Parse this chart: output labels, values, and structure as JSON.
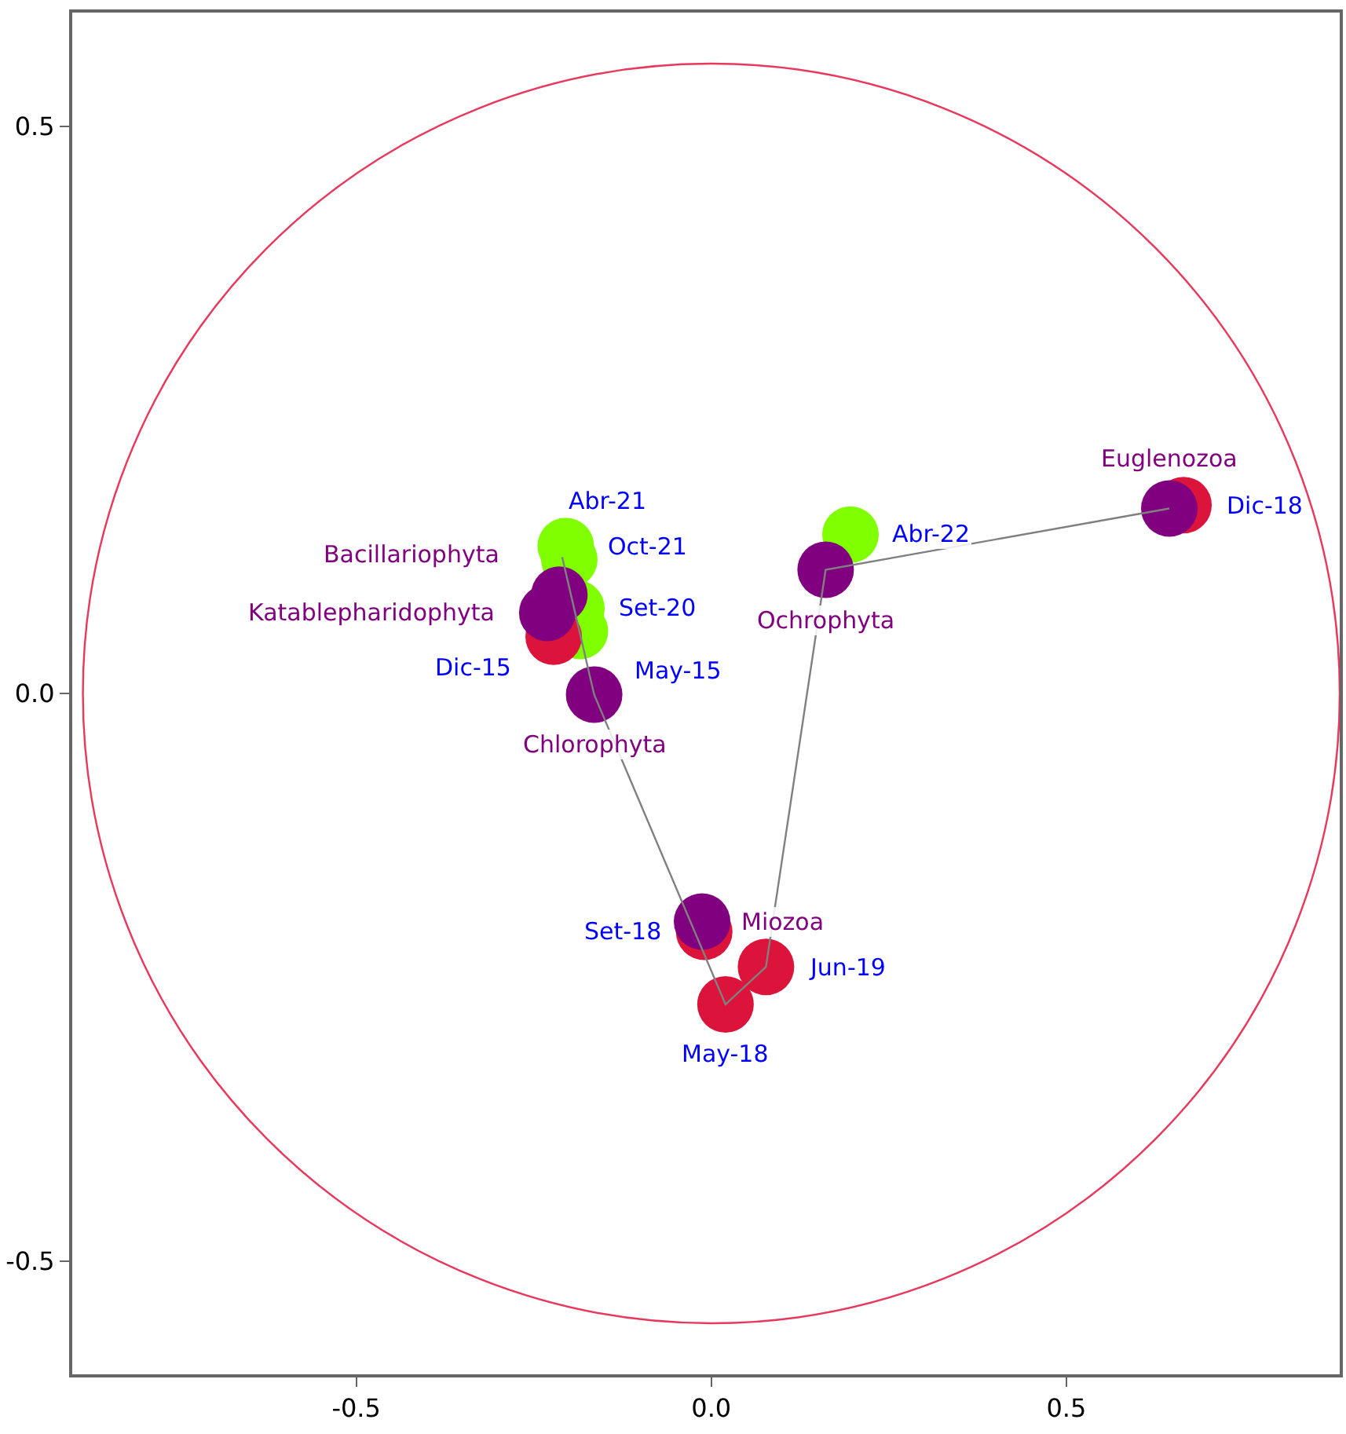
{
  "chart_data": {
    "type": "scatter",
    "xlim": [
      -0.9,
      0.885
    ],
    "ylim": [
      -0.6,
      0.6
    ],
    "xticks": [
      {
        "value": -0.5,
        "label": "-0.5"
      },
      {
        "value": 0,
        "label": "0.0"
      },
      {
        "value": 0.5,
        "label": "0.5"
      }
    ],
    "yticks": [
      {
        "value": -0.5,
        "label": "-0.5"
      },
      {
        "value": 0,
        "label": "0.0"
      },
      {
        "value": 0.5,
        "label": "0.5"
      }
    ],
    "grid": false,
    "marker": "circle",
    "series": [
      {
        "color": "#7fff00",
        "x": [
          -0.205,
          -0.2,
          -0.19,
          -0.185,
          0.196
        ],
        "values": [
          0.13,
          0.118,
          0.075,
          0.055,
          0.14
        ],
        "value_labels": [
          "Oct-21",
          "Abr-21",
          "Set-20",
          "May-15",
          "Abr-22"
        ]
      },
      {
        "color": "#dc143c",
        "x": [
          -0.222,
          0.665,
          -0.01,
          0.077,
          0.02
        ],
        "values": [
          0.05,
          0.166,
          -0.21,
          -0.241,
          -0.274
        ],
        "value_labels": [
          "Dic-15",
          "Dic-18",
          "Set-18",
          "Jun-19",
          "May-18"
        ]
      },
      {
        "color": "#800080",
        "x": [
          -0.231,
          -0.214,
          -0.165,
          -0.013,
          0.161,
          0.645
        ],
        "values": [
          0.071,
          0.087,
          -0.001,
          -0.201,
          0.109,
          0.163
        ],
        "value_labels": [
          "Katablepharidophyta",
          "Bacillariophyta",
          "Chlorophyta",
          "Miozoa",
          "Ochrophyta",
          "Euglenozoa"
        ]
      },
      {
        "type": "line",
        "marker": "none",
        "color": "#808080",
        "x": [
          -0.21,
          -0.165,
          0.02,
          0.077,
          0.161,
          0.645
        ],
        "values": [
          0.12,
          -0.001,
          -0.274,
          -0.241,
          0.109,
          0.163
        ]
      }
    ]
  }
}
